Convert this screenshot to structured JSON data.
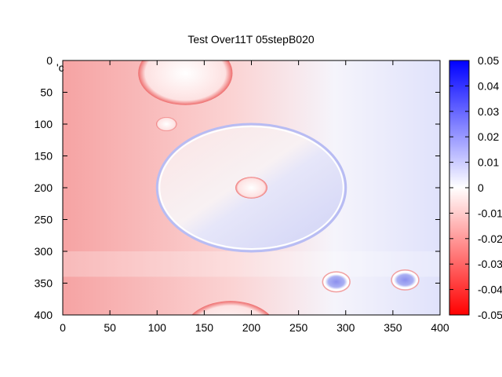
{
  "chart_data": {
    "type": "heatmap",
    "title": "Test Over11T 05stepB020",
    "xlabel": "",
    "ylabel": "",
    "xlim": [
      0,
      400
    ],
    "ylim": [
      0,
      400
    ],
    "y_axis_inverted": true,
    "x_ticks": [
      "0",
      "50",
      "100",
      "150",
      "200",
      "250",
      "300",
      "350",
      "400"
    ],
    "y_ticks": [
      "0",
      "50",
      "100",
      "150",
      "200",
      "250",
      "300",
      "350",
      "400"
    ],
    "colorbar": {
      "range": [
        -0.05,
        0.05
      ],
      "ticks": [
        "0.05",
        "0.04",
        "0.03",
        "0.02",
        "0.01",
        "0",
        "-0.01",
        "-0.02",
        "-0.03",
        "-0.04",
        "-0.05"
      ],
      "colors": {
        "low": "#ff0000",
        "mid": "#ffffff",
        "high": "#0000ff"
      }
    },
    "legend_fragment": "'c",
    "features": [
      {
        "kind": "disk",
        "cx": 130,
        "cy": 20,
        "r": 50,
        "value": -0.005
      },
      {
        "kind": "disk",
        "cx": 110,
        "cy": 100,
        "r": 11,
        "value": 0.0
      },
      {
        "kind": "ring",
        "cx": 200,
        "cy": 200,
        "r": 100,
        "value": 0.02
      },
      {
        "kind": "disk",
        "cx": 200,
        "cy": 200,
        "r": 17,
        "value": 0.0
      },
      {
        "kind": "disk",
        "cx": 290,
        "cy": 348,
        "r": 12,
        "value": 0.03
      },
      {
        "kind": "disk",
        "cx": 363,
        "cy": 345,
        "r": 12,
        "value": 0.035
      },
      {
        "kind": "disk",
        "cx": 178,
        "cy": 428,
        "r": 50,
        "value": -0.005
      }
    ]
  }
}
